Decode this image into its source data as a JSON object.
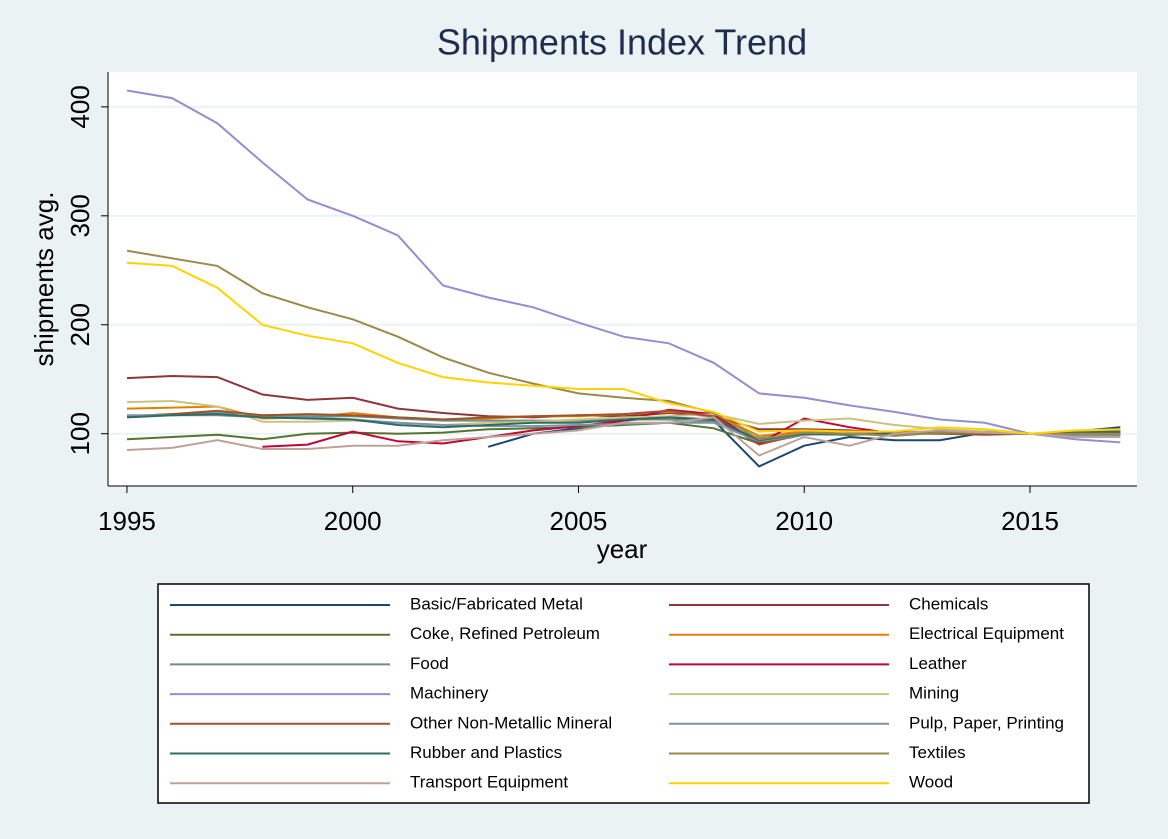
{
  "chart_data": {
    "type": "line",
    "title": "Shipments Index Trend",
    "x_label": "year",
    "y_label": "shipments avg.",
    "x": [
      1995,
      1996,
      1997,
      1998,
      1999,
      2000,
      2001,
      2002,
      2003,
      2004,
      2005,
      2006,
      2007,
      2008,
      2009,
      2010,
      2011,
      2012,
      2013,
      2014,
      2015,
      2016,
      2017
    ],
    "xlim": [
      1994.58,
      2017.37
    ],
    "xticks": [
      1995,
      2000,
      2005,
      2010,
      2015
    ],
    "ylim": [
      52,
      432
    ],
    "yticks": [
      100,
      200,
      300,
      400
    ],
    "grid": true,
    "series": [
      {
        "name": "Basic/Fabricated Metal",
        "color": "#1a476f",
        "values": [
          null,
          null,
          null,
          null,
          null,
          null,
          null,
          null,
          88,
          100,
          105,
          112,
          115,
          112,
          70,
          89,
          97,
          94,
          94,
          101,
          100,
          102,
          106
        ]
      },
      {
        "name": "Chemicals",
        "color": "#90353b",
        "values": [
          151,
          153,
          152,
          136,
          131,
          133,
          123,
          119,
          116,
          115,
          117,
          116,
          119,
          116,
          104,
          104,
          103,
          101,
          102,
          101,
          100,
          100,
          101
        ]
      },
      {
        "name": "Coke, Refined Petroleum",
        "color": "#55752f",
        "values": [
          95,
          97,
          99,
          95,
          100,
          101,
          100,
          101,
          104,
          105,
          106,
          108,
          110,
          105,
          91,
          99,
          100,
          100,
          102,
          102,
          100,
          101,
          102
        ]
      },
      {
        "name": "Electrical Equipment",
        "color": "#e37e00",
        "values": [
          123,
          124,
          125,
          114,
          115,
          119,
          115,
          113,
          114,
          116,
          116,
          118,
          120,
          118,
          98,
          102,
          100,
          100,
          102,
          101,
          100,
          102,
          103
        ]
      },
      {
        "name": "Food",
        "color": "#6e8e84",
        "values": [
          116,
          118,
          119,
          117,
          116,
          116,
          114,
          112,
          112,
          112,
          112,
          113,
          113,
          111,
          96,
          100,
          100,
          100,
          101,
          101,
          100,
          101,
          102
        ]
      },
      {
        "name": "Leather",
        "color": "#c10534",
        "values": [
          null,
          null,
          null,
          88,
          90,
          102,
          93,
          91,
          97,
          103,
          107,
          112,
          122,
          118,
          91,
          114,
          106,
          100,
          101,
          101,
          100,
          100,
          101
        ]
      },
      {
        "name": "Machinery",
        "color": "#938dd2",
        "values": [
          415,
          408,
          385,
          349,
          315,
          300,
          282,
          236,
          225,
          216,
          202,
          189,
          183,
          165,
          137,
          133,
          126,
          120,
          113,
          110,
          100,
          95,
          92
        ]
      },
      {
        "name": "Mining",
        "color": "#cac27e",
        "values": [
          129,
          130,
          125,
          111,
          111,
          112,
          110,
          108,
          110,
          111,
          113,
          115,
          116,
          118,
          109,
          112,
          114,
          108,
          104,
          102,
          100,
          102,
          103
        ]
      },
      {
        "name": "Other Non-Metallic Mineral",
        "color": "#a0522d",
        "values": [
          116,
          118,
          121,
          117,
          118,
          117,
          115,
          113,
          115,
          116,
          117,
          118,
          121,
          116,
          90,
          100,
          99,
          100,
          100,
          99,
          100,
          98,
          98
        ]
      },
      {
        "name": "Pulp, Paper, Printing",
        "color": "#7b92a8",
        "values": [
          117,
          117,
          117,
          115,
          115,
          113,
          110,
          108,
          107,
          107,
          108,
          109,
          110,
          110,
          93,
          99,
          100,
          100,
          101,
          101,
          100,
          98,
          99
        ]
      },
      {
        "name": "Rubber and Plastics",
        "color": "#2d6d66",
        "values": [
          115,
          117,
          118,
          115,
          114,
          113,
          108,
          106,
          108,
          110,
          110,
          113,
          115,
          113,
          94,
          100,
          99,
          100,
          101,
          101,
          100,
          101,
          102
        ]
      },
      {
        "name": "Textiles",
        "color": "#9c8847",
        "values": [
          268,
          261,
          254,
          229,
          216,
          205,
          189,
          170,
          156,
          146,
          137,
          133,
          130,
          119,
          95,
          101,
          100,
          98,
          101,
          101,
          100,
          100,
          100
        ]
      },
      {
        "name": "Transport Equipment",
        "color": "#bfa19c",
        "values": [
          85,
          87,
          94,
          86,
          86,
          89,
          89,
          94,
          97,
          100,
          103,
          110,
          110,
          115,
          80,
          97,
          89,
          100,
          103,
          101,
          100,
          97,
          97
        ]
      },
      {
        "name": "Wood",
        "color": "#ffd200",
        "values": [
          257,
          254,
          234,
          200,
          190,
          183,
          165,
          152,
          147,
          144,
          141,
          141,
          128,
          120,
          102,
          103,
          102,
          102,
          106,
          104,
          100,
          103,
          104
        ]
      }
    ]
  }
}
